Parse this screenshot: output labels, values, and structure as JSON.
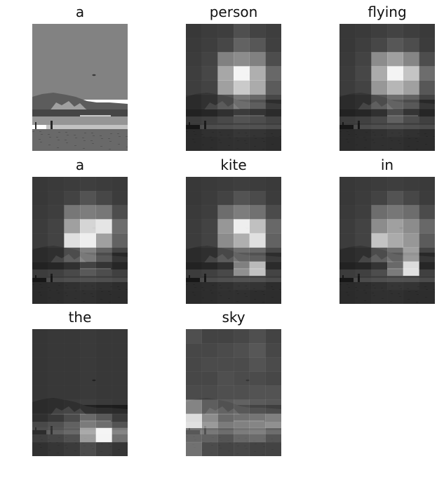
{
  "panels": [
    {
      "word": "a",
      "kind": "original",
      "weights": []
    },
    {
      "word": "person",
      "kind": "attention",
      "weights": [
        [
          0.05,
          0.07,
          0.08,
          0.16,
          0.1,
          0.08
        ],
        [
          0.06,
          0.08,
          0.12,
          0.25,
          0.2,
          0.09
        ],
        [
          0.07,
          0.1,
          0.4,
          0.45,
          0.4,
          0.15
        ],
        [
          0.08,
          0.12,
          0.58,
          0.95,
          0.62,
          0.28
        ],
        [
          0.08,
          0.1,
          0.55,
          0.75,
          0.6,
          0.22
        ],
        [
          0.05,
          0.08,
          0.18,
          0.35,
          0.28,
          0.12
        ],
        [
          0.04,
          0.06,
          0.1,
          0.15,
          0.12,
          0.08
        ],
        [
          0.03,
          0.05,
          0.06,
          0.08,
          0.07,
          0.05
        ],
        [
          0.03,
          0.04,
          0.05,
          0.06,
          0.05,
          0.04
        ]
      ]
    },
    {
      "word": "flying",
      "kind": "attention",
      "weights": [
        [
          0.05,
          0.06,
          0.08,
          0.1,
          0.08,
          0.06
        ],
        [
          0.05,
          0.08,
          0.12,
          0.2,
          0.15,
          0.07
        ],
        [
          0.06,
          0.1,
          0.45,
          0.55,
          0.42,
          0.15
        ],
        [
          0.07,
          0.12,
          0.6,
          0.95,
          0.72,
          0.3
        ],
        [
          0.07,
          0.1,
          0.5,
          0.65,
          0.55,
          0.2
        ],
        [
          0.05,
          0.07,
          0.2,
          0.3,
          0.25,
          0.1
        ],
        [
          0.04,
          0.06,
          0.1,
          0.22,
          0.12,
          0.06
        ],
        [
          0.03,
          0.04,
          0.06,
          0.08,
          0.06,
          0.04
        ],
        [
          0.03,
          0.04,
          0.05,
          0.05,
          0.04,
          0.04
        ]
      ]
    },
    {
      "word": "a",
      "kind": "attention",
      "weights": [
        [
          0.05,
          0.06,
          0.07,
          0.08,
          0.07,
          0.06
        ],
        [
          0.05,
          0.07,
          0.1,
          0.18,
          0.12,
          0.07
        ],
        [
          0.06,
          0.08,
          0.35,
          0.38,
          0.35,
          0.15
        ],
        [
          0.07,
          0.1,
          0.55,
          0.8,
          0.88,
          0.3
        ],
        [
          0.07,
          0.1,
          0.85,
          0.92,
          0.55,
          0.25
        ],
        [
          0.05,
          0.07,
          0.2,
          0.4,
          0.25,
          0.1
        ],
        [
          0.04,
          0.06,
          0.1,
          0.18,
          0.12,
          0.06
        ],
        [
          0.03,
          0.04,
          0.06,
          0.07,
          0.06,
          0.04
        ],
        [
          0.03,
          0.04,
          0.05,
          0.05,
          0.04,
          0.04
        ]
      ]
    },
    {
      "word": "kite",
      "kind": "attention",
      "weights": [
        [
          0.05,
          0.06,
          0.07,
          0.08,
          0.07,
          0.06
        ],
        [
          0.05,
          0.07,
          0.1,
          0.18,
          0.14,
          0.07
        ],
        [
          0.06,
          0.08,
          0.3,
          0.38,
          0.32,
          0.14
        ],
        [
          0.07,
          0.1,
          0.5,
          0.92,
          0.7,
          0.28
        ],
        [
          0.07,
          0.1,
          0.45,
          0.62,
          0.85,
          0.25
        ],
        [
          0.05,
          0.07,
          0.18,
          0.3,
          0.28,
          0.12
        ],
        [
          0.04,
          0.06,
          0.1,
          0.45,
          0.7,
          0.08
        ],
        [
          0.03,
          0.04,
          0.06,
          0.08,
          0.07,
          0.04
        ],
        [
          0.03,
          0.04,
          0.05,
          0.05,
          0.04,
          0.04
        ]
      ]
    },
    {
      "word": "in",
      "kind": "attention",
      "weights": [
        [
          0.05,
          0.06,
          0.07,
          0.08,
          0.07,
          0.06
        ],
        [
          0.05,
          0.07,
          0.1,
          0.18,
          0.12,
          0.07
        ],
        [
          0.06,
          0.08,
          0.3,
          0.35,
          0.3,
          0.14
        ],
        [
          0.07,
          0.1,
          0.45,
          0.55,
          0.45,
          0.28
        ],
        [
          0.07,
          0.1,
          0.72,
          0.6,
          0.5,
          0.22
        ],
        [
          0.05,
          0.07,
          0.2,
          0.3,
          0.55,
          0.1
        ],
        [
          0.04,
          0.06,
          0.12,
          0.35,
          0.85,
          0.06
        ],
        [
          0.03,
          0.04,
          0.06,
          0.08,
          0.07,
          0.04
        ],
        [
          0.03,
          0.04,
          0.05,
          0.05,
          0.04,
          0.04
        ]
      ]
    },
    {
      "word": "the",
      "kind": "attention",
      "weights": [
        [
          0.04,
          0.05,
          0.05,
          0.06,
          0.05,
          0.05
        ],
        [
          0.04,
          0.05,
          0.05,
          0.06,
          0.05,
          0.05
        ],
        [
          0.04,
          0.05,
          0.05,
          0.06,
          0.05,
          0.05
        ],
        [
          0.04,
          0.05,
          0.05,
          0.06,
          0.05,
          0.05
        ],
        [
          0.04,
          0.05,
          0.05,
          0.06,
          0.05,
          0.05
        ],
        [
          0.05,
          0.06,
          0.07,
          0.08,
          0.06,
          0.05
        ],
        [
          0.1,
          0.14,
          0.22,
          0.35,
          0.28,
          0.15
        ],
        [
          0.12,
          0.15,
          0.2,
          0.55,
          0.95,
          0.35
        ],
        [
          0.06,
          0.08,
          0.1,
          0.18,
          0.12,
          0.08
        ]
      ]
    },
    {
      "word": "sky",
      "kind": "attention",
      "weights": [
        [
          0.16,
          0.1,
          0.1,
          0.12,
          0.16,
          0.1
        ],
        [
          0.12,
          0.12,
          0.14,
          0.16,
          0.2,
          0.12
        ],
        [
          0.12,
          0.14,
          0.14,
          0.14,
          0.18,
          0.14
        ],
        [
          0.12,
          0.12,
          0.16,
          0.14,
          0.14,
          0.12
        ],
        [
          0.14,
          0.14,
          0.16,
          0.16,
          0.18,
          0.18
        ],
        [
          0.45,
          0.28,
          0.22,
          0.25,
          0.22,
          0.2
        ],
        [
          0.85,
          0.5,
          0.35,
          0.38,
          0.4,
          0.45
        ],
        [
          0.3,
          0.28,
          0.22,
          0.3,
          0.32,
          0.22
        ],
        [
          0.35,
          0.18,
          0.15,
          0.16,
          0.14,
          0.14
        ]
      ]
    }
  ]
}
